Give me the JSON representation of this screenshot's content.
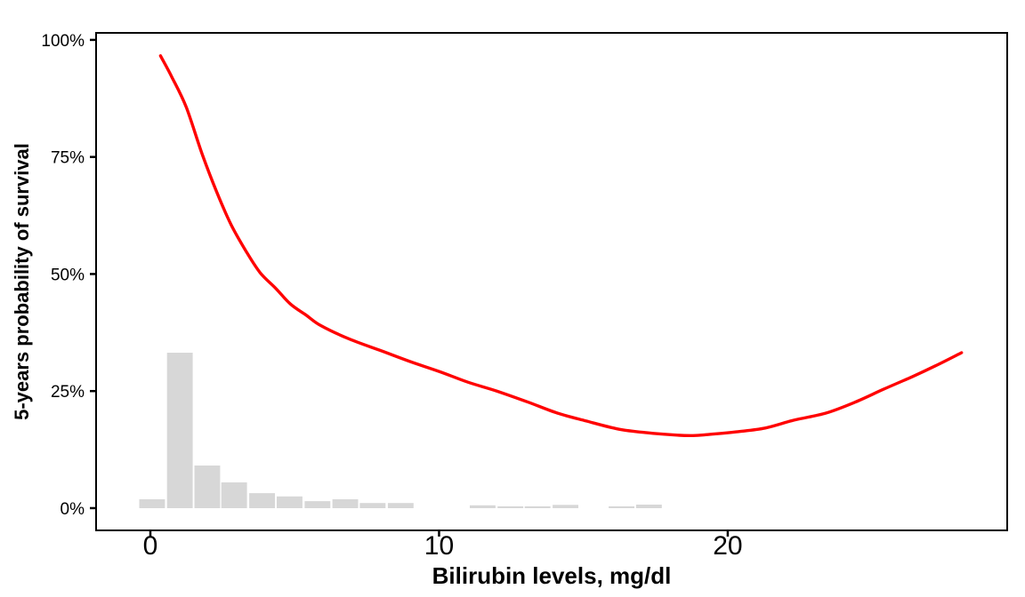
{
  "figure": {
    "background": "#FFFFFF"
  },
  "chart_data": {
    "type": "line+histogram",
    "title": "",
    "xlabel": "Bilirubin levels, mg/dl",
    "ylabel": "5-years probability of survival",
    "xlim": [
      -1.88,
      29.68
    ],
    "ylim_pct": [
      -4.75,
      101.5
    ],
    "grid": false,
    "legend": "none",
    "panel_border_color": "#000000",
    "axis_text_color": "#000000",
    "x_ticks": [
      {
        "v": 0,
        "label": "0"
      },
      {
        "v": 10,
        "label": "10"
      },
      {
        "v": 20,
        "label": "20"
      }
    ],
    "y_ticks": [
      {
        "v": 0,
        "label": "0%"
      },
      {
        "v": 25,
        "label": "25%"
      },
      {
        "v": 50,
        "label": "50%"
      },
      {
        "v": 75,
        "label": "75%"
      },
      {
        "v": 100,
        "label": "100%"
      }
    ],
    "series": [
      {
        "name": "smoothed-5-year-survival-probability",
        "type": "line",
        "color": "#FF0000",
        "stroke_width": 3.4,
        "points": [
          [
            0.35,
            96.6
          ],
          [
            0.75,
            92.0
          ],
          [
            1.25,
            85.5
          ],
          [
            1.8,
            75.5
          ],
          [
            2.3,
            67.5
          ],
          [
            2.8,
            60.5
          ],
          [
            3.3,
            55.0
          ],
          [
            3.8,
            50.3
          ],
          [
            4.35,
            46.9
          ],
          [
            4.85,
            43.6
          ],
          [
            5.4,
            41.2
          ],
          [
            5.9,
            39.0
          ],
          [
            6.9,
            36.1
          ],
          [
            8.0,
            33.6
          ],
          [
            9.0,
            31.3
          ],
          [
            10.0,
            29.2
          ],
          [
            11.0,
            26.9
          ],
          [
            12.0,
            25.0
          ],
          [
            13.1,
            22.6
          ],
          [
            14.1,
            20.3
          ],
          [
            15.1,
            18.6
          ],
          [
            16.2,
            16.9
          ],
          [
            17.2,
            16.1
          ],
          [
            18.2,
            15.6
          ],
          [
            18.8,
            15.5
          ],
          [
            19.3,
            15.7
          ],
          [
            20.3,
            16.3
          ],
          [
            21.3,
            17.1
          ],
          [
            22.3,
            18.8
          ],
          [
            23.4,
            20.3
          ],
          [
            24.4,
            22.6
          ],
          [
            25.4,
            25.4
          ],
          [
            26.4,
            28.1
          ],
          [
            27.2,
            30.4
          ],
          [
            28.1,
            33.2
          ]
        ]
      },
      {
        "name": "bilirubin-level-histogram",
        "type": "bar",
        "color": "#D7D7D7",
        "bin_width": 0.92,
        "bins": [
          [
            0.06,
            1.9
          ],
          [
            1.02,
            33.2
          ],
          [
            1.97,
            9.1
          ],
          [
            2.9,
            5.5
          ],
          [
            3.87,
            3.2
          ],
          [
            4.82,
            2.5
          ],
          [
            5.79,
            1.5
          ],
          [
            6.75,
            1.9
          ],
          [
            7.7,
            1.1
          ],
          [
            8.67,
            1.1
          ],
          [
            11.51,
            0.6
          ],
          [
            12.47,
            0.4
          ],
          [
            13.41,
            0.4
          ],
          [
            14.38,
            0.7
          ],
          [
            16.32,
            0.4
          ],
          [
            17.27,
            0.75
          ]
        ]
      }
    ]
  }
}
